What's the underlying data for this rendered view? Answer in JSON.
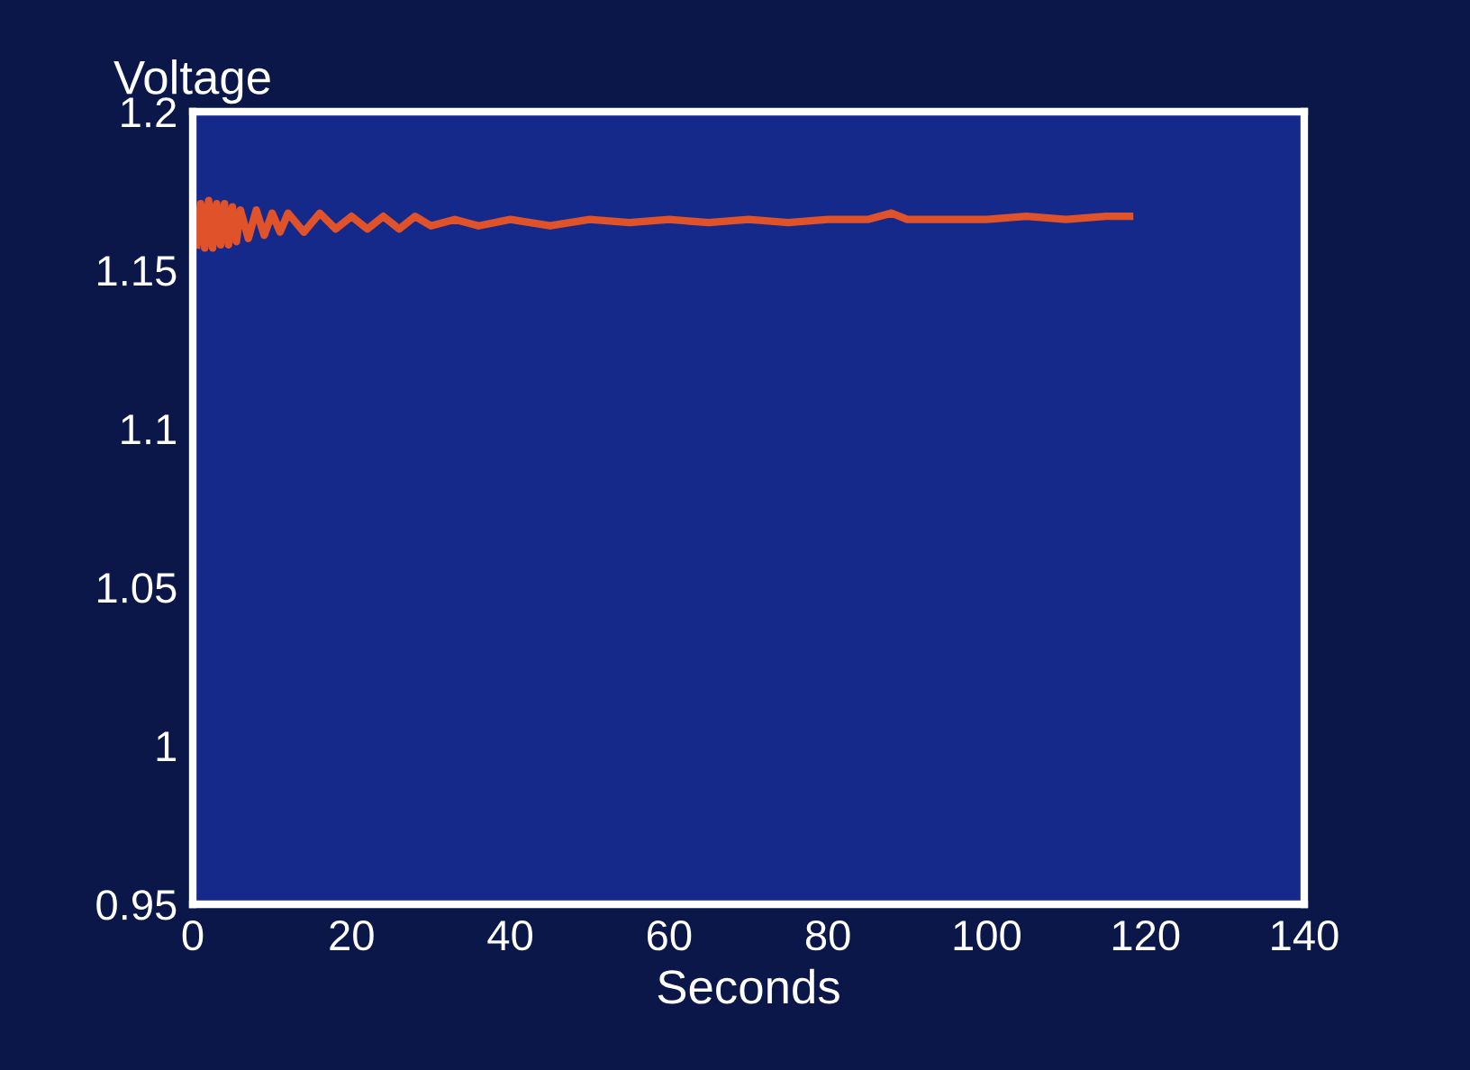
{
  "chart_data": {
    "type": "line",
    "ylabel": "Voltage",
    "xlabel": "Seconds",
    "series": [
      {
        "color": "#e0522a",
        "x": [
          0.5,
          1,
          1.5,
          2,
          2.5,
          3,
          3.5,
          4,
          4.5,
          5,
          5.5,
          6,
          7,
          8,
          9,
          10,
          11,
          12,
          14,
          16,
          18,
          20,
          22,
          24,
          26,
          28,
          30,
          33,
          36,
          40,
          45,
          50,
          55,
          60,
          65,
          70,
          75,
          80,
          85,
          88,
          90,
          95,
          100,
          105,
          110,
          115,
          118
        ],
        "values": [
          1.158,
          1.171,
          1.157,
          1.172,
          1.157,
          1.171,
          1.158,
          1.171,
          1.158,
          1.17,
          1.159,
          1.169,
          1.16,
          1.169,
          1.161,
          1.168,
          1.162,
          1.168,
          1.162,
          1.168,
          1.163,
          1.167,
          1.163,
          1.167,
          1.163,
          1.167,
          1.164,
          1.166,
          1.164,
          1.166,
          1.164,
          1.166,
          1.165,
          1.166,
          1.165,
          1.166,
          1.165,
          1.166,
          1.166,
          1.168,
          1.166,
          1.166,
          1.166,
          1.167,
          1.166,
          1.167,
          1.167
        ]
      }
    ],
    "xlim": [
      0,
      140
    ],
    "xticks": [
      0,
      20,
      40,
      60,
      80,
      100,
      120,
      140
    ],
    "ylim": [
      0.95,
      1.2
    ],
    "yticks": [
      0.95,
      1,
      1.05,
      1.1,
      1.15,
      1.2
    ],
    "grid": false,
    "legend": false,
    "marker": "none",
    "line_style": "solid"
  }
}
